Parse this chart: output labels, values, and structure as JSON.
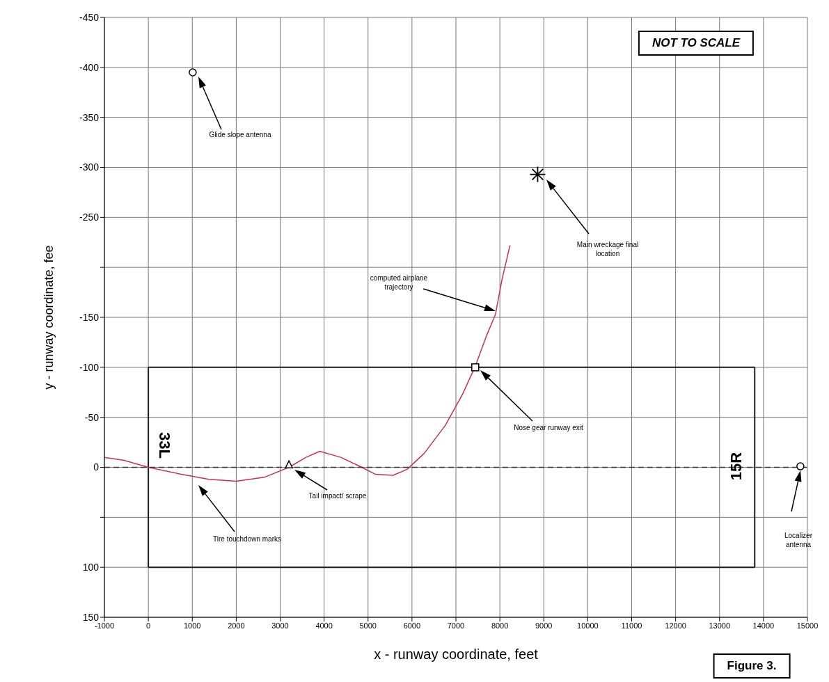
{
  "chart_data": {
    "type": "line",
    "xlabel": "x - runway coordinate, feet",
    "ylabel": "y - runway coordinate, fee",
    "xlim": [
      -1000,
      15000
    ],
    "xticks": [
      -1000,
      0,
      1000,
      2000,
      3000,
      4000,
      5000,
      6000,
      7000,
      8000,
      9000,
      10000,
      11000,
      12000,
      13000,
      14000,
      15000
    ],
    "ylim": [
      150,
      -450
    ],
    "yticks": [
      -450,
      -400,
      -350,
      -300,
      -250,
      {
        "value": -200,
        "label": null
      },
      -150,
      -100,
      -50,
      0,
      {
        "value": 50,
        "label": null
      },
      100,
      150
    ],
    "grid": true,
    "marker": "none",
    "series": [
      {
        "color": "#1e1e1e",
        "x": [
          0,
          13800
        ],
        "values": [
          -100,
          -100
        ]
      },
      {
        "color": "#1e1e1e",
        "x": [
          0,
          13800
        ],
        "values": [
          100,
          100
        ]
      },
      {
        "color": "#1e1e1e",
        "x": [
          0,
          0
        ],
        "values": [
          -100,
          100
        ]
      },
      {
        "color": "#1e1e1e",
        "x": [
          13800,
          13800
        ],
        "values": [
          -100,
          100
        ]
      },
      {
        "color": "#c8324a",
        "x": [
          -1000,
          -550,
          0,
          750,
          1380,
          2000,
          2640,
          3200,
          3590,
          3900,
          4380,
          4860,
          5170,
          5570,
          5890,
          6280,
          6760,
          7150,
          7440,
          7700,
          7900,
          8050,
          8230
        ],
        "values": [
          -10,
          -7,
          0,
          7,
          12,
          14,
          10,
          0,
          -10,
          -16,
          -10,
          0,
          7,
          8,
          2,
          -14,
          -42,
          -73,
          -101,
          -132,
          -153,
          -188,
          -222
        ]
      },
      {
        "type": "scatter",
        "color": "#000000",
        "marker": "circle",
        "x": [
          1010,
          14840
        ],
        "values": [
          -395,
          -1
        ]
      },
      {
        "type": "scatter",
        "color": "#000000",
        "marker": "cross",
        "x": [
          8860
        ],
        "values": [
          -293
        ]
      },
      {
        "type": "scatter",
        "color": "#000000",
        "marker": "square",
        "x": [
          7440
        ],
        "values": [
          -100
        ]
      },
      {
        "type": "scatter",
        "color": "#000000",
        "marker": "triangle",
        "x": [
          3200
        ],
        "values": [
          -3
        ]
      }
    ],
    "ref_lines": [
      {
        "axis": "y",
        "value": 0,
        "line_style": "dashed",
        "color": "#333333"
      }
    ],
    "annotations": [
      "Glide slope antenna",
      "Main wreckage final location",
      "computed airplane trajectory",
      "Nose gear runway exit",
      "Tail impact/ scrape",
      "Tire touchdown marks",
      "Localizer antenna",
      "33L",
      "15R",
      "NOT TO SCALE",
      "Figure 3."
    ]
  }
}
